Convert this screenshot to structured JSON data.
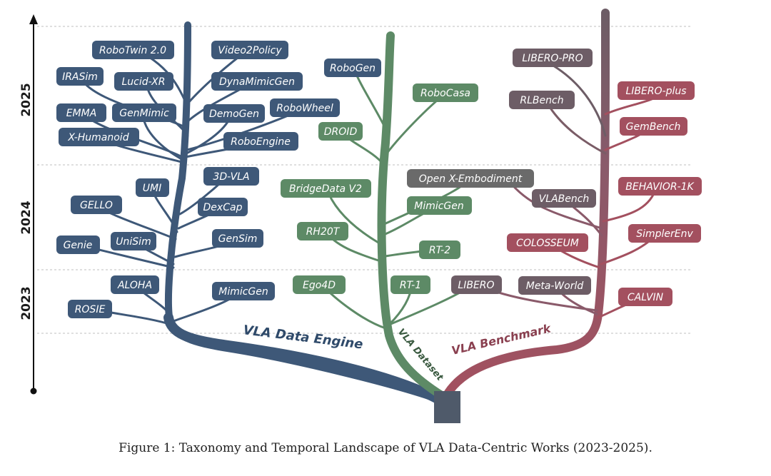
{
  "timeline": {
    "years": [
      "2025",
      "2024",
      "2023"
    ]
  },
  "branches": {
    "engine": {
      "label": "VLA Data Engine",
      "color": "#3e5878"
    },
    "dataset": {
      "label": "VLA Dataset",
      "color": "#5a8762"
    },
    "benchmark": {
      "label": "VLA Benchmark",
      "color": "#9a5563"
    }
  },
  "nodes": {
    "engine": [
      "RoboTwin 2.0",
      "Video2Policy",
      "IRASim",
      "Lucid-XR",
      "DynaMimicGen",
      "EMMA",
      "GenMimic",
      "DemoGen",
      "RoboWheel",
      "X-Humanoid",
      "RoboEngine",
      "3D-VLA",
      "UMI",
      "GELLO",
      "DexCap",
      "Genie",
      "UniSim",
      "GenSim",
      "ALOHA",
      "ROSIE",
      "MimicGen"
    ],
    "dataset": [
      "RoboGen",
      "RoboCasa",
      "DROID",
      "BridgeData V2",
      "Open X-Embodiment",
      "MimicGen",
      "RH20T",
      "RT-2",
      "Ego4D",
      "RT-1"
    ],
    "benchmark": [
      "LIBERO-PRO",
      "RLBench",
      "LIBERO-plus",
      "GemBench",
      "BEHAVIOR-1K",
      "VLABench",
      "SimplerEnv",
      "COLOSSEUM",
      "LIBERO",
      "Meta-World",
      "CALVIN"
    ]
  },
  "caption": "Figure 1: Taxonomy and Temporal Landscape of VLA Data-Centric Works (2023-2025)."
}
